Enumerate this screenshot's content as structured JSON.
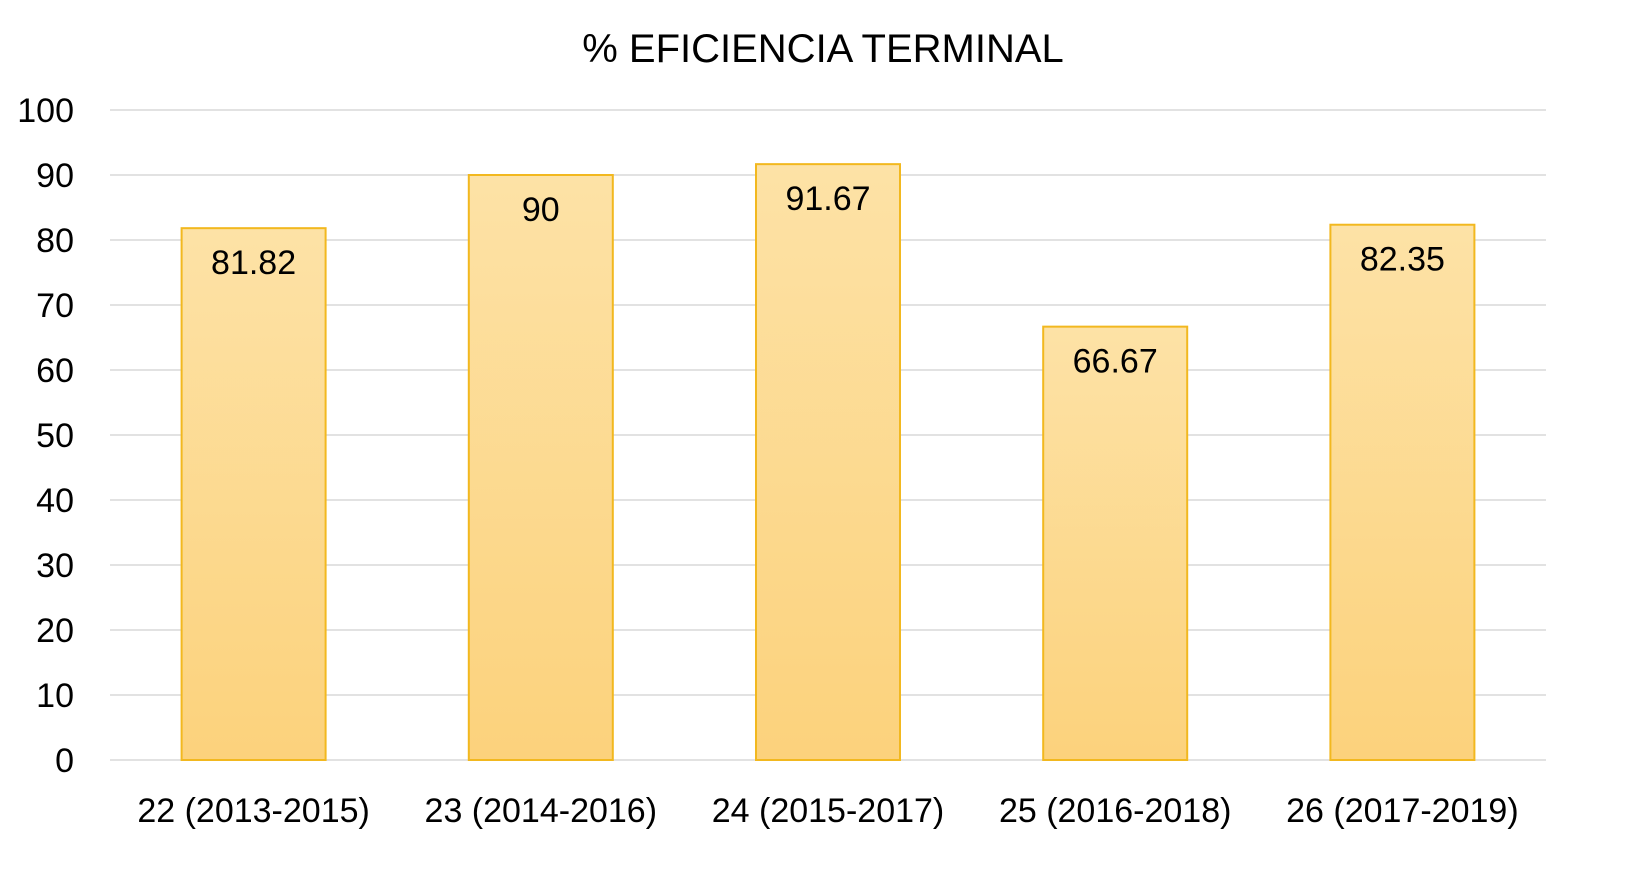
{
  "chart_data": {
    "type": "bar",
    "title": "% EFICIENCIA TERMINAL",
    "xlabel": "",
    "ylabel": "",
    "categories": [
      "22 (2013-2015)",
      "23 (2014-2016)",
      "24 (2015-2017)",
      "25 (2016-2018)",
      "26 (2017-2019)"
    ],
    "values": [
      81.82,
      90,
      91.67,
      66.67,
      82.35
    ],
    "data_labels": [
      "81.82",
      "90",
      "91.67",
      "66.67",
      "82.35"
    ],
    "ylim": [
      0,
      100
    ],
    "yticks": [
      0,
      10,
      20,
      30,
      40,
      50,
      60,
      70,
      80,
      90,
      100
    ],
    "ytick_labels": [
      "0",
      "10",
      "20",
      "30",
      "40",
      "50",
      "60",
      "70",
      "80",
      "90",
      "100"
    ],
    "grid": true,
    "legend": "none",
    "colors": {
      "bar_fill_top": "#fde2a6",
      "bar_fill_bottom": "#fcd27c",
      "bar_stroke": "#f2b81f",
      "grid": "#d9d9d9",
      "text": "#000000"
    }
  }
}
